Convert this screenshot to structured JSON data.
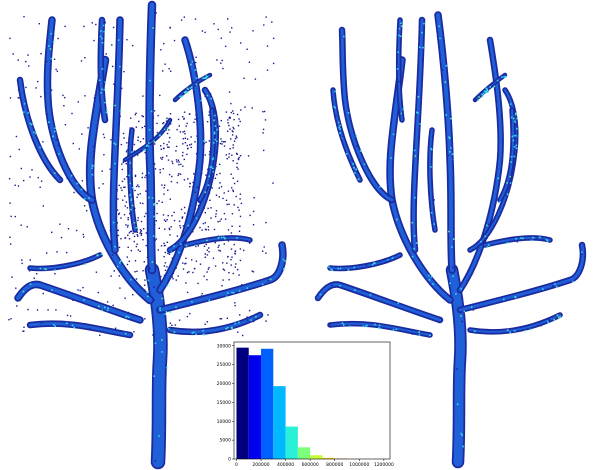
{
  "panels": [
    {
      "name": "tree-point-cloud-raw",
      "description": "noisy point cloud"
    },
    {
      "name": "tree-point-cloud-filtered",
      "description": "filtered point cloud"
    }
  ],
  "colors": {
    "background": "#ffffff",
    "noise_point": "#1a1a8c",
    "trunk_dark": "#1b2a9e",
    "trunk_mid": "#1f5fd8",
    "highlight_cyan": "#35d7ee",
    "highlight_green": "#5de0b0"
  },
  "chart_data": {
    "type": "bar",
    "title": "",
    "xlabel": "",
    "ylabel": "",
    "x_ticks": [
      "0",
      "200000",
      "400000",
      "600000",
      "800000",
      "1000000",
      "1200000"
    ],
    "y_ticks": [
      "0",
      "5000",
      "10000",
      "15000",
      "20000",
      "25000",
      "30000"
    ],
    "xlim": [
      -20000,
      1250000
    ],
    "ylim": [
      0,
      31000
    ],
    "bins": [
      {
        "x0": 0,
        "x1": 100000,
        "value": 29500,
        "color": "#00007f"
      },
      {
        "x0": 100000,
        "x1": 200000,
        "value": 27500,
        "color": "#0000ee"
      },
      {
        "x0": 200000,
        "x1": 300000,
        "value": 29200,
        "color": "#0060ff"
      },
      {
        "x0": 300000,
        "x1": 400000,
        "value": 19300,
        "color": "#00b8ff"
      },
      {
        "x0": 400000,
        "x1": 500000,
        "value": 8600,
        "color": "#2af0d8"
      },
      {
        "x0": 500000,
        "x1": 600000,
        "value": 3100,
        "color": "#7dff7a"
      },
      {
        "x0": 600000,
        "x1": 700000,
        "value": 1000,
        "color": "#c8ff36"
      },
      {
        "x0": 700000,
        "x1": 800000,
        "value": 300,
        "color": "#ffd400"
      },
      {
        "x0": 800000,
        "x1": 900000,
        "value": 100,
        "color": "#ff8000"
      }
    ]
  }
}
